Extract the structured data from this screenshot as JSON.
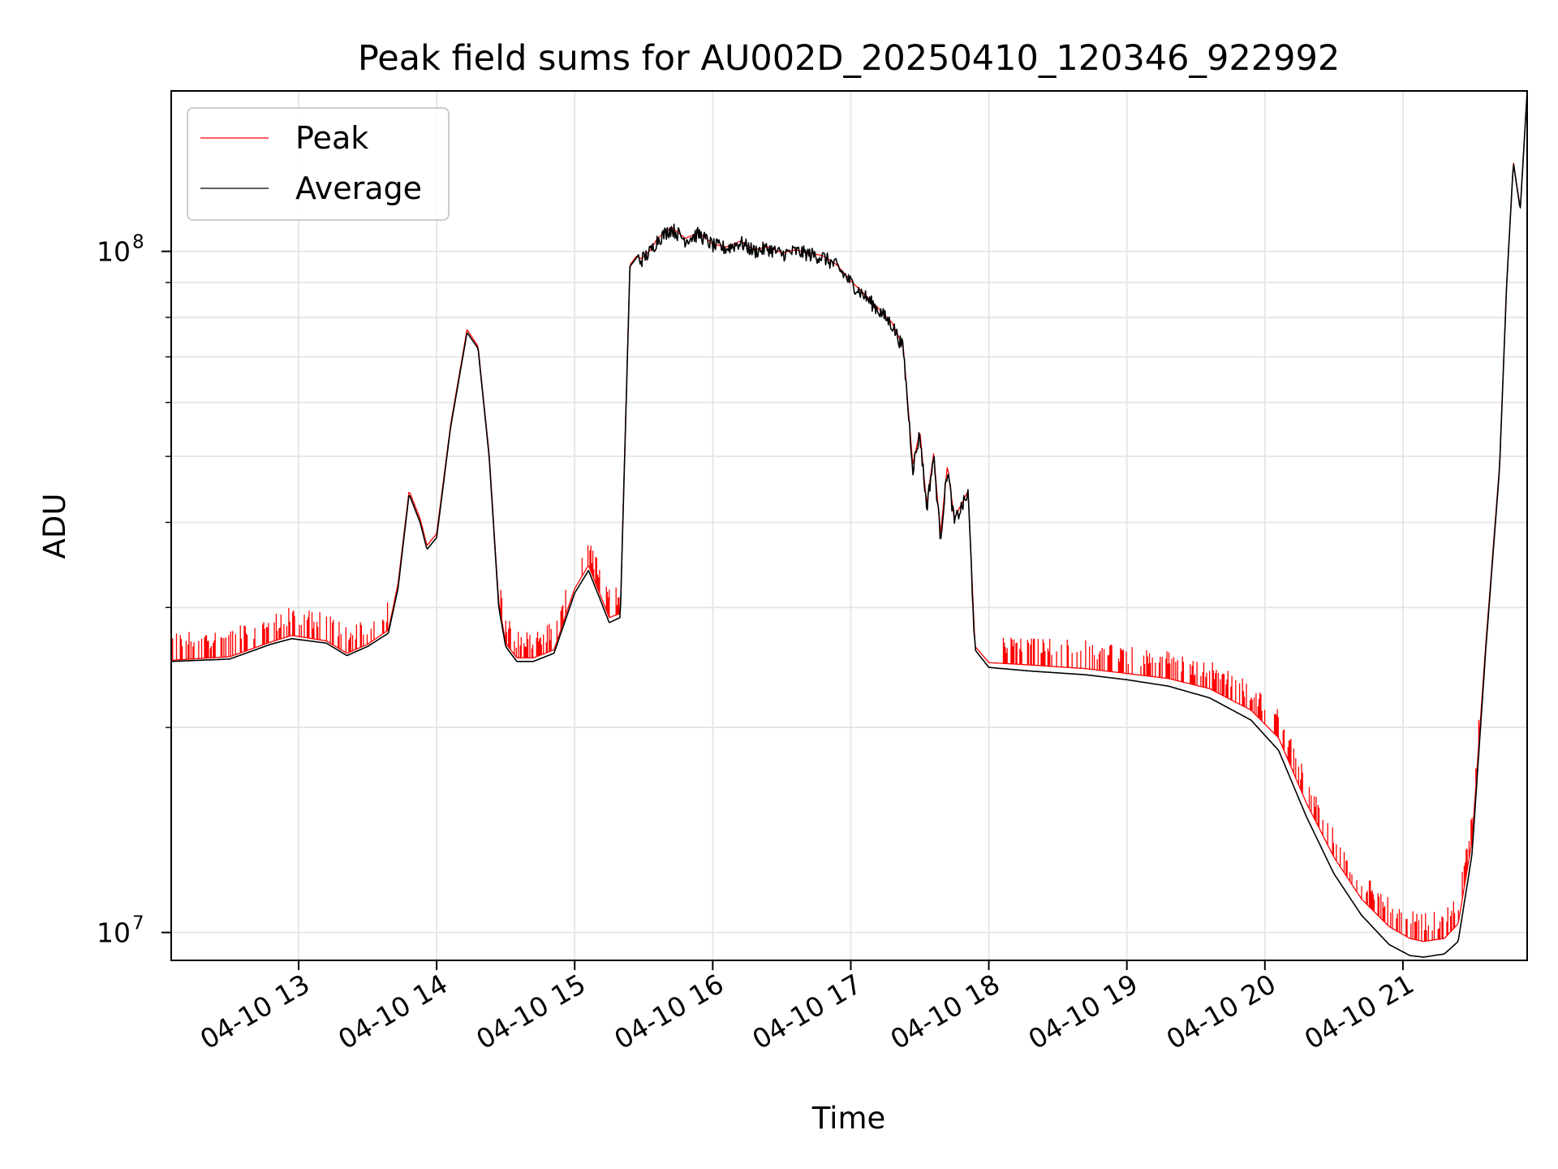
{
  "chart_data": {
    "type": "line",
    "title": "Peak field sums for AU002D_20250410_120346_922992",
    "xlabel": "Time",
    "ylabel": "ADU",
    "yscale": "log",
    "xlim": [
      12.077,
      21.9
    ],
    "ylim": [
      9100000,
      172000000
    ],
    "grid": true,
    "legend_position": "upper-left",
    "x_unit": "hours since 04-10 00:00",
    "x_ticks": [
      {
        "value": 13,
        "label": "04-10 13"
      },
      {
        "value": 14,
        "label": "04-10 14"
      },
      {
        "value": 15,
        "label": "04-10 15"
      },
      {
        "value": 16,
        "label": "04-10 16"
      },
      {
        "value": 17,
        "label": "04-10 17"
      },
      {
        "value": 18,
        "label": "04-10 18"
      },
      {
        "value": 19,
        "label": "04-10 19"
      },
      {
        "value": 20,
        "label": "04-10 20"
      },
      {
        "value": 21,
        "label": "04-10 21"
      }
    ],
    "y_major_ticks": [
      {
        "value": 10000000,
        "base": "10",
        "exp": "7"
      },
      {
        "value": 100000000,
        "base": "10",
        "exp": "8"
      }
    ],
    "y_minor_ticks": [
      20000000,
      30000000,
      40000000,
      50000000,
      60000000,
      70000000,
      80000000,
      90000000
    ],
    "series": [
      {
        "name": "Average",
        "color": "#000000",
        "x": [
          12.08,
          12.5,
          12.8,
          12.95,
          13.2,
          13.35,
          13.5,
          13.65,
          13.72,
          13.8,
          13.88,
          13.93,
          14.0,
          14.1,
          14.22,
          14.3,
          14.38,
          14.45,
          14.5,
          14.58,
          14.7,
          14.85,
          15.0,
          15.1,
          15.18,
          15.25,
          15.33,
          15.4,
          15.45,
          15.48,
          15.55,
          15.6,
          15.7,
          15.8,
          15.9,
          16.0,
          16.1,
          16.2,
          16.3,
          16.4,
          16.5,
          16.6,
          16.7,
          16.8,
          16.9,
          17.0,
          17.1,
          17.2,
          17.3,
          17.38,
          17.45,
          17.5,
          17.55,
          17.6,
          17.65,
          17.7,
          17.75,
          17.8,
          17.85,
          17.9,
          18.0,
          18.3,
          18.7,
          19.0,
          19.3,
          19.6,
          19.9,
          20.1,
          20.3,
          20.5,
          20.7,
          20.9,
          21.05,
          21.15,
          21.3,
          21.4,
          21.5,
          21.6,
          21.7,
          21.75,
          21.8,
          21.85,
          21.9
        ],
        "y": [
          25000000,
          25200000,
          26500000,
          27000000,
          26600000,
          25500000,
          26300000,
          27500000,
          32000000,
          44000000,
          40000000,
          36500000,
          38000000,
          55000000,
          76000000,
          72000000,
          50000000,
          30000000,
          26300000,
          25000000,
          25000000,
          25700000,
          31500000,
          34000000,
          31000000,
          28500000,
          29000000,
          95000000,
          98000000,
          97000000,
          100000000,
          104000000,
          108000000,
          104000000,
          106000000,
          102000000,
          101000000,
          103000000,
          100000000,
          101000000,
          99000000,
          100000000,
          99000000,
          98000000,
          95000000,
          90000000,
          86000000,
          82000000,
          78000000,
          72000000,
          48000000,
          54000000,
          42000000,
          50000000,
          38000000,
          48000000,
          40000000,
          42000000,
          44000000,
          26000000,
          24500000,
          24200000,
          23900000,
          23500000,
          23000000,
          22100000,
          20500000,
          18500000,
          14800000,
          12200000,
          10600000,
          9600000,
          9250000,
          9200000,
          9300000,
          9700000,
          13000000,
          26000000,
          48000000,
          88000000,
          135000000,
          115000000,
          172000000
        ]
      },
      {
        "name": "Peak",
        "color": "#ff0000",
        "spike_ratio": 1.1,
        "x": [
          12.08,
          12.5,
          12.8,
          12.95,
          13.2,
          13.35,
          13.5,
          13.65,
          13.72,
          13.8,
          13.88,
          13.93,
          14.0,
          14.1,
          14.22,
          14.3,
          14.38,
          14.45,
          14.5,
          14.58,
          14.7,
          14.85,
          15.0,
          15.1,
          15.18,
          15.25,
          15.33,
          15.4,
          15.45,
          15.48,
          15.55,
          15.6,
          15.7,
          15.8,
          15.9,
          16.0,
          16.1,
          16.2,
          16.3,
          16.4,
          16.5,
          16.6,
          16.7,
          16.8,
          16.9,
          17.0,
          17.1,
          17.2,
          17.3,
          17.38,
          17.45,
          17.5,
          17.55,
          17.6,
          17.65,
          17.7,
          17.75,
          17.8,
          17.85,
          17.9,
          18.0,
          18.3,
          18.7,
          19.0,
          19.3,
          19.6,
          19.9,
          20.1,
          20.3,
          20.5,
          20.7,
          20.9,
          21.05,
          21.15,
          21.3,
          21.4,
          21.5,
          21.6,
          21.7,
          21.75,
          21.8,
          21.85,
          21.9
        ],
        "y": [
          25100000,
          25400000,
          26700000,
          27300000,
          26800000,
          25700000,
          26500000,
          27800000,
          32500000,
          44500000,
          40500000,
          37000000,
          38500000,
          55500000,
          76800000,
          72500000,
          50500000,
          30500000,
          26600000,
          25300000,
          25300000,
          26000000,
          32000000,
          34600000,
          31500000,
          29000000,
          29400000,
          95500000,
          98500000,
          97500000,
          100500000,
          104500000,
          108500000,
          104500000,
          106500000,
          102500000,
          101500000,
          103500000,
          100500000,
          101500000,
          99500000,
          100500000,
          99500000,
          98500000,
          95500000,
          90500000,
          86500000,
          82500000,
          78500000,
          72500000,
          48500000,
          54500000,
          42500000,
          50500000,
          38500000,
          48500000,
          40500000,
          42500000,
          44500000,
          26300000,
          24900000,
          24700000,
          24400000,
          24000000,
          23600000,
          22800000,
          21200000,
          19300000,
          15500000,
          12900000,
          11200000,
          10200000,
          9800000,
          9700000,
          9800000,
          10300000,
          13600000,
          26500000,
          48500000,
          88500000,
          135500000,
          115500000,
          172000000
        ]
      }
    ]
  },
  "legend": {
    "items": [
      {
        "name": "Peak",
        "color": "#ff0000"
      },
      {
        "name": "Average",
        "color": "#000000"
      }
    ]
  }
}
